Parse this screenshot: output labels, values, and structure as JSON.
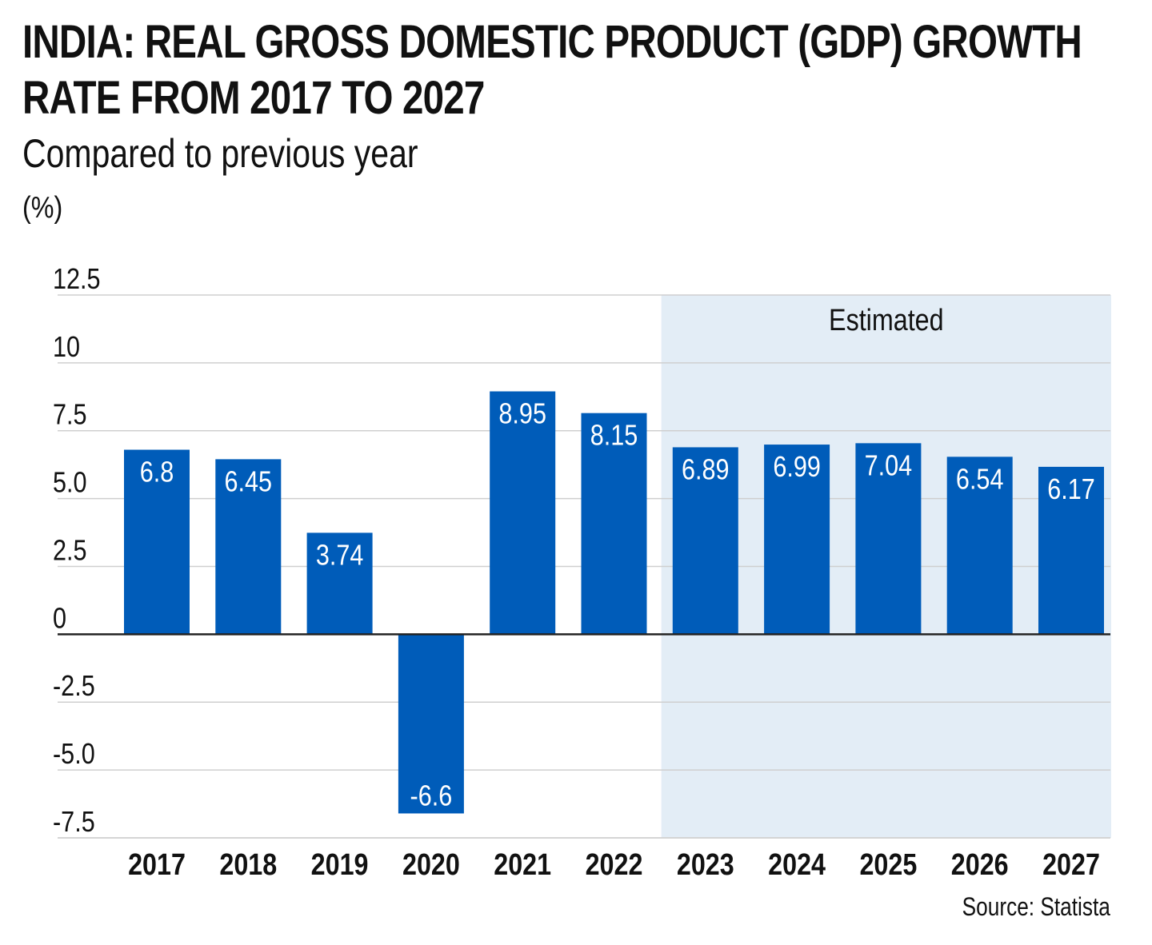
{
  "header": {
    "title": "INDIA: REAL GROSS DOMESTIC PRODUCT (GDP) GROWTH RATE FROM 2017 TO 2027",
    "subtitle": "Compared to previous year",
    "unit": "(%)"
  },
  "footer": {
    "source": "Source: Statista"
  },
  "colors": {
    "bar": "#005cb9",
    "estimate_band": "#e3edf6",
    "gridline": "#cfcfcf",
    "zero_line": "#222222",
    "bar_label": "#ffffff",
    "text": "#111111"
  },
  "chart_data": {
    "type": "bar",
    "title": "INDIA: REAL GROSS DOMESTIC PRODUCT (GDP) GROWTH RATE FROM 2017 TO 2027",
    "subtitle": "Compared to previous year",
    "ylabel": "(%)",
    "xlabel": "",
    "categories": [
      "2017",
      "2018",
      "2019",
      "2020",
      "2021",
      "2022",
      "2023",
      "2024",
      "2025",
      "2026",
      "2027"
    ],
    "values": [
      6.8,
      6.45,
      3.74,
      -6.6,
      8.95,
      8.15,
      6.89,
      6.99,
      7.04,
      6.54,
      6.17
    ],
    "value_labels": [
      "6.8",
      "6.45",
      "3.74",
      "-6.6",
      "8.95",
      "8.15",
      "6.89",
      "6.99",
      "7.04",
      "6.54",
      "6.17"
    ],
    "ylim": [
      -7.5,
      12.5
    ],
    "yticks": [
      12.5,
      10,
      7.5,
      5.0,
      2.5,
      0,
      -2.5,
      -5.0,
      -7.5
    ],
    "ytick_labels": [
      "12.5",
      "10",
      "7.5",
      "5.0",
      "2.5",
      "0",
      "-2.5",
      "-5.0",
      "-7.5"
    ],
    "grid": true,
    "estimated": {
      "label": "Estimated",
      "from_category": "2023",
      "to_category": "2027"
    }
  }
}
